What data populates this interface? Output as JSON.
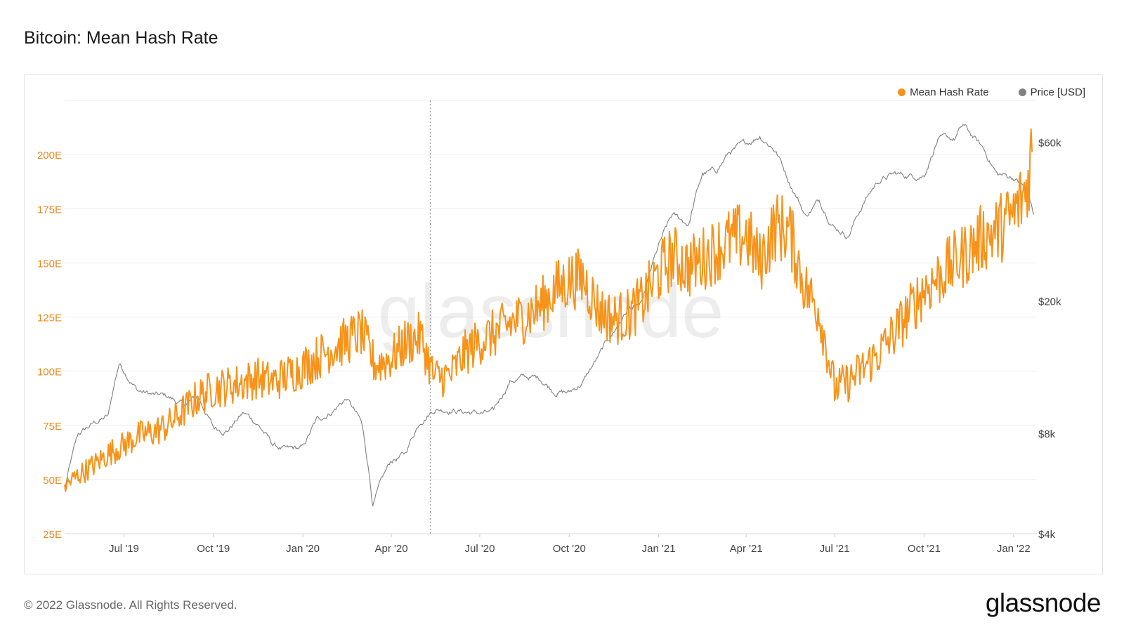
{
  "page": {
    "title": "Bitcoin: Mean Hash Rate",
    "footer": "© 2022 Glassnode. All Rights Reserved.",
    "logo": "glassnode",
    "watermark": "glassnode"
  },
  "legend": [
    {
      "label": "Mean Hash Rate",
      "color": "#f7931a"
    },
    {
      "label": "Price [USD]",
      "color": "#808080"
    }
  ],
  "chart_data": {
    "type": "line",
    "title": "Bitcoin: Mean Hash Rate",
    "xlim": [
      "2019-05-01",
      "2022-01-25"
    ],
    "x_ticks": [
      {
        "date": "2019-07-01",
        "label": "Jul '19"
      },
      {
        "date": "2019-10-01",
        "label": "Oct '19"
      },
      {
        "date": "2020-01-01",
        "label": "Jan '20"
      },
      {
        "date": "2020-04-01",
        "label": "Apr '20"
      },
      {
        "date": "2020-07-01",
        "label": "Jul '20"
      },
      {
        "date": "2020-10-01",
        "label": "Oct '20"
      },
      {
        "date": "2021-01-01",
        "label": "Jan '21"
      },
      {
        "date": "2021-04-01",
        "label": "Apr '21"
      },
      {
        "date": "2021-07-01",
        "label": "Jul '21"
      },
      {
        "date": "2021-10-01",
        "label": "Oct '21"
      },
      {
        "date": "2022-01-01",
        "label": "Jan '22"
      }
    ],
    "y_left": {
      "unit": "E",
      "lim": [
        25,
        225
      ],
      "ticks": [
        {
          "value": 25,
          "label": "25E"
        },
        {
          "value": 50,
          "label": "50E"
        },
        {
          "value": 75,
          "label": "75E"
        },
        {
          "value": 100,
          "label": "100E"
        },
        {
          "value": 125,
          "label": "125E"
        },
        {
          "value": 150,
          "label": "150E"
        },
        {
          "value": 175,
          "label": "175E"
        },
        {
          "value": 200,
          "label": "200E"
        }
      ]
    },
    "y_right": {
      "scale": "log",
      "lim": [
        4000,
        80000
      ],
      "ticks": [
        {
          "value": 4000,
          "label": "$4k"
        },
        {
          "value": 8000,
          "label": "$8k"
        },
        {
          "value": 20000,
          "label": "$20k"
        },
        {
          "value": 60000,
          "label": "$60k"
        }
      ]
    },
    "annotations": [
      {
        "type": "vertical-dotted-line",
        "date": "2020-05-11"
      }
    ],
    "series": [
      {
        "name": "Mean Hash Rate",
        "axis": "left",
        "color": "#f7931a",
        "points": [
          [
            "2019-05-01",
            47
          ],
          [
            "2019-05-15",
            52
          ],
          [
            "2019-06-01",
            57
          ],
          [
            "2019-06-15",
            62
          ],
          [
            "2019-07-01",
            66
          ],
          [
            "2019-07-15",
            70
          ],
          [
            "2019-08-01",
            72
          ],
          [
            "2019-08-15",
            75
          ],
          [
            "2019-09-01",
            82
          ],
          [
            "2019-09-15",
            88
          ],
          [
            "2019-10-01",
            92
          ],
          [
            "2019-10-15",
            93
          ],
          [
            "2019-11-01",
            95
          ],
          [
            "2019-11-15",
            97
          ],
          [
            "2019-12-01",
            95
          ],
          [
            "2019-12-15",
            98
          ],
          [
            "2020-01-01",
            102
          ],
          [
            "2020-01-15",
            106
          ],
          [
            "2020-02-01",
            111
          ],
          [
            "2020-02-15",
            114
          ],
          [
            "2020-03-01",
            118
          ],
          [
            "2020-03-15",
            103
          ],
          [
            "2020-04-01",
            106
          ],
          [
            "2020-04-15",
            113
          ],
          [
            "2020-05-01",
            116
          ],
          [
            "2020-05-15",
            97
          ],
          [
            "2020-06-01",
            98
          ],
          [
            "2020-06-15",
            108
          ],
          [
            "2020-07-01",
            114
          ],
          [
            "2020-07-15",
            117
          ],
          [
            "2020-08-01",
            122
          ],
          [
            "2020-08-15",
            125
          ],
          [
            "2020-09-01",
            130
          ],
          [
            "2020-09-15",
            137
          ],
          [
            "2020-10-01",
            142
          ],
          [
            "2020-10-15",
            143
          ],
          [
            "2020-11-01",
            128
          ],
          [
            "2020-11-15",
            124
          ],
          [
            "2020-12-01",
            126
          ],
          [
            "2020-12-15",
            132
          ],
          [
            "2021-01-01",
            145
          ],
          [
            "2021-01-15",
            153
          ],
          [
            "2021-02-01",
            148
          ],
          [
            "2021-02-15",
            152
          ],
          [
            "2021-03-01",
            156
          ],
          [
            "2021-03-15",
            160
          ],
          [
            "2021-04-01",
            163
          ],
          [
            "2021-04-15",
            150
          ],
          [
            "2021-05-01",
            167
          ],
          [
            "2021-05-15",
            165
          ],
          [
            "2021-06-01",
            138
          ],
          [
            "2021-06-15",
            128
          ],
          [
            "2021-07-01",
            92
          ],
          [
            "2021-07-15",
            95
          ],
          [
            "2021-08-01",
            102
          ],
          [
            "2021-08-15",
            108
          ],
          [
            "2021-09-01",
            118
          ],
          [
            "2021-09-15",
            127
          ],
          [
            "2021-10-01",
            138
          ],
          [
            "2021-10-15",
            143
          ],
          [
            "2021-11-01",
            150
          ],
          [
            "2021-11-15",
            155
          ],
          [
            "2021-12-01",
            162
          ],
          [
            "2021-12-15",
            165
          ],
          [
            "2022-01-01",
            172
          ],
          [
            "2022-01-15",
            185
          ],
          [
            "2022-01-20",
            205
          ]
        ]
      },
      {
        "name": "Price [USD]",
        "axis": "right",
        "color": "#808080",
        "points": [
          [
            "2019-05-01",
            5400
          ],
          [
            "2019-05-15",
            7900
          ],
          [
            "2019-06-01",
            8600
          ],
          [
            "2019-06-15",
            9000
          ],
          [
            "2019-06-26",
            13000
          ],
          [
            "2019-07-15",
            10800
          ],
          [
            "2019-08-01",
            10400
          ],
          [
            "2019-08-15",
            10300
          ],
          [
            "2019-09-01",
            9700
          ],
          [
            "2019-09-15",
            10300
          ],
          [
            "2019-10-01",
            8300
          ],
          [
            "2019-10-15",
            8200
          ],
          [
            "2019-11-01",
            9200
          ],
          [
            "2019-11-15",
            8600
          ],
          [
            "2019-12-01",
            7400
          ],
          [
            "2019-12-15",
            7100
          ],
          [
            "2020-01-01",
            7200
          ],
          [
            "2020-01-15",
            8700
          ],
          [
            "2020-02-01",
            9400
          ],
          [
            "2020-02-15",
            10200
          ],
          [
            "2020-03-01",
            8600
          ],
          [
            "2020-03-13",
            4900
          ],
          [
            "2020-04-01",
            6600
          ],
          [
            "2020-04-15",
            6900
          ],
          [
            "2020-05-01",
            8800
          ],
          [
            "2020-05-15",
            9500
          ],
          [
            "2020-06-01",
            9500
          ],
          [
            "2020-06-15",
            9300
          ],
          [
            "2020-07-01",
            9200
          ],
          [
            "2020-07-15",
            9200
          ],
          [
            "2020-08-01",
            11500
          ],
          [
            "2020-08-15",
            11800
          ],
          [
            "2020-09-01",
            11700
          ],
          [
            "2020-09-15",
            10800
          ],
          [
            "2020-10-01",
            10600
          ],
          [
            "2020-10-15",
            11400
          ],
          [
            "2020-11-01",
            13700
          ],
          [
            "2020-11-15",
            16000
          ],
          [
            "2020-12-01",
            19000
          ],
          [
            "2020-12-15",
            19400
          ],
          [
            "2021-01-01",
            29000
          ],
          [
            "2021-01-15",
            36000
          ],
          [
            "2021-02-01",
            34000
          ],
          [
            "2021-02-15",
            48000
          ],
          [
            "2021-03-01",
            49000
          ],
          [
            "2021-03-15",
            56000
          ],
          [
            "2021-04-01",
            59000
          ],
          [
            "2021-04-15",
            63000
          ],
          [
            "2021-05-01",
            57000
          ],
          [
            "2021-05-15",
            46000
          ],
          [
            "2021-06-01",
            36000
          ],
          [
            "2021-06-15",
            40000
          ],
          [
            "2021-07-01",
            33500
          ],
          [
            "2021-07-15",
            31500
          ],
          [
            "2021-08-01",
            40000
          ],
          [
            "2021-08-15",
            46000
          ],
          [
            "2021-09-01",
            48000
          ],
          [
            "2021-09-15",
            47500
          ],
          [
            "2021-10-01",
            48000
          ],
          [
            "2021-10-15",
            61000
          ],
          [
            "2021-11-01",
            61000
          ],
          [
            "2021-11-10",
            67000
          ],
          [
            "2021-12-01",
            57000
          ],
          [
            "2021-12-15",
            48000
          ],
          [
            "2022-01-01",
            47000
          ],
          [
            "2022-01-15",
            43000
          ],
          [
            "2022-01-22",
            36000
          ]
        ]
      }
    ]
  }
}
